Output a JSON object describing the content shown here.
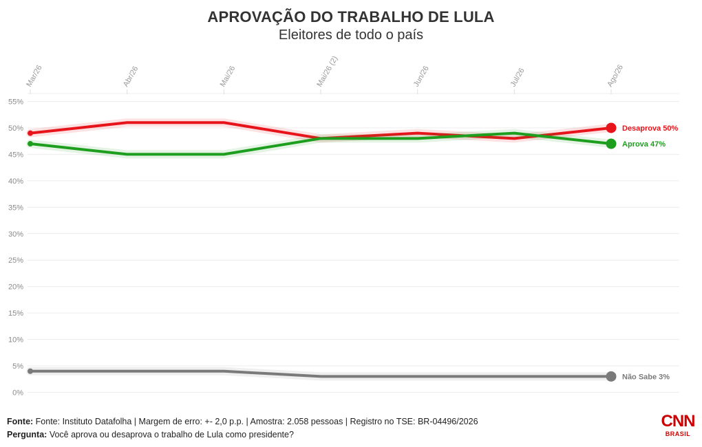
{
  "header": {
    "title": "APROVAÇÃO DO TRABALHO DE LULA",
    "subtitle": "Eleitores de todo o país"
  },
  "footer": {
    "source_label": "Fonte:",
    "source_text": "Fonte: Instituto Datafolha | Margem de erro: +- 2,0 p.p. | Amostra: 2.058 pessoas | Registro no TSE: BR-04496/2026",
    "question_label": "Pergunta:",
    "question_text": "Você aprova ou desaprova o trabalho de Lula como presidente?"
  },
  "logo": {
    "main": "CNN",
    "sub": "BRASIL",
    "color": "#cc0000"
  },
  "chart_data": {
    "type": "line",
    "title": "APROVAÇÃO DO TRABALHO DE LULA",
    "subtitle": "Eleitores de todo o país",
    "categories": [
      "Mar/26",
      "Abr/26",
      "Mai/26",
      "Mai/26 (2)",
      "Jun/26",
      "Jul/26",
      "Ago/26"
    ],
    "y_ticks": [
      "0%",
      "5%",
      "10%",
      "15%",
      "20%",
      "25%",
      "30%",
      "35%",
      "40%",
      "45%",
      "50%",
      "55%"
    ],
    "ylim": [
      0,
      55
    ],
    "grid": true,
    "series": [
      {
        "name": "Desaprova",
        "label": "Desaprova 50%",
        "color": "#e8141b",
        "values": [
          49,
          51,
          51,
          48,
          49,
          48,
          50
        ]
      },
      {
        "name": "Aprova",
        "label": "Aprova 47%",
        "color": "#1e9e1e",
        "values": [
          47,
          45,
          45,
          48,
          48,
          49,
          47
        ]
      },
      {
        "name": "Não Sabe",
        "label": "Não Sabe 3%",
        "color": "#7a7a7a",
        "values": [
          4,
          4,
          4,
          3,
          3,
          3,
          3
        ]
      }
    ]
  }
}
